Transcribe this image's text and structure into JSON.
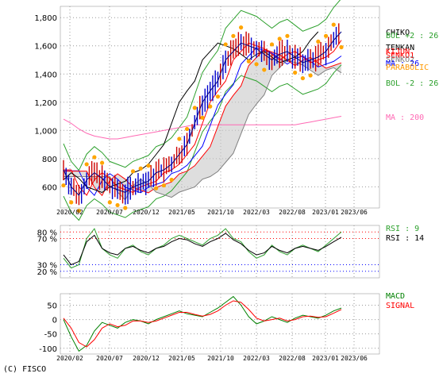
{
  "chart_data": [
    {
      "type": "line",
      "panel": "price",
      "y_ticks": [
        "1,800",
        "1,600",
        "1,400",
        "1,200",
        "1,000",
        "800",
        "600"
      ],
      "ylim": [
        450,
        1880
      ],
      "x_tick_labels": [
        "2020/02",
        "2020/07",
        "2020/12",
        "2021/05",
        "2021/10",
        "2022/03",
        "2022/08",
        "2023/01",
        "2023/06"
      ],
      "legend": [
        {
          "text": "CHIKO",
          "color": "#000000"
        },
        {
          "text": "BOL +2 : 26",
          "color": "#2ca02c"
        },
        {
          "text": "TENKAN",
          "color": "#000000"
        },
        {
          "text": "KIJUN",
          "color": "#ff0000"
        },
        {
          "text": "SENKO1",
          "color": "#ff0000"
        },
        {
          "text": "SENKO2",
          "color": "#808080"
        },
        {
          "text": "MA : 26",
          "color": "#0000ff"
        },
        {
          "text": "PARABOLIC",
          "color": "#ff9900"
        },
        {
          "text": "BOL -2 : 26",
          "color": "#2ca02c"
        },
        {
          "text": "MA : 200",
          "color": "#ff69b4"
        }
      ],
      "series": [
        {
          "name": "Close",
          "values": [
            720,
            600,
            540,
            650,
            700,
            660,
            600,
            580,
            560,
            600,
            620,
            640,
            700,
            720,
            760,
            830,
            900,
            1050,
            1200,
            1280,
            1350,
            1500,
            1560,
            1620,
            1600,
            1580,
            1540,
            1500,
            1540,
            1560,
            1520,
            1480,
            1500,
            1520,
            1560,
            1640,
            1700
          ]
        },
        {
          "name": "MA : 200",
          "values": [
            1080,
            1050,
            1010,
            980,
            960,
            950,
            940,
            940,
            950,
            960,
            970,
            980,
            990,
            1000,
            1010,
            1020,
            1030,
            1040,
            1040,
            1040,
            1040,
            1040,
            1040,
            1040,
            1040,
            1040,
            1040,
            1040,
            1040,
            1040,
            1040,
            1050,
            1060,
            1070,
            1080,
            1090,
            1100
          ]
        }
      ]
    },
    {
      "type": "line",
      "panel": "rsi",
      "y_ticks": [
        "80 %",
        "70 %",
        "30 %",
        "20 %"
      ],
      "legend": [
        {
          "text": "RSI : 9",
          "color": "#2ca02c"
        },
        {
          "text": "RSI : 14",
          "color": "#000000"
        }
      ],
      "series": [
        {
          "name": "RSI : 9",
          "values": [
            40,
            25,
            30,
            70,
            85,
            55,
            45,
            40,
            55,
            60,
            50,
            45,
            55,
            60,
            70,
            75,
            70,
            65,
            60,
            70,
            75,
            85,
            70,
            65,
            50,
            40,
            45,
            60,
            50,
            45,
            55,
            60,
            55,
            50,
            60,
            70,
            80
          ]
        },
        {
          "name": "RSI : 14",
          "values": [
            45,
            30,
            35,
            65,
            75,
            55,
            48,
            45,
            55,
            58,
            52,
            48,
            55,
            58,
            65,
            70,
            68,
            62,
            58,
            65,
            70,
            78,
            68,
            62,
            52,
            45,
            48,
            58,
            52,
            48,
            55,
            58,
            55,
            52,
            58,
            65,
            72
          ]
        }
      ]
    },
    {
      "type": "line",
      "panel": "macd",
      "y_ticks": [
        "50",
        "0",
        "-50",
        "-100"
      ],
      "ylim": [
        -120,
        90
      ],
      "legend": [
        {
          "text": "MACD",
          "color": "#008000"
        },
        {
          "text": "SIGNAL",
          "color": "#ff0000"
        }
      ],
      "series": [
        {
          "name": "MACD",
          "values": [
            0,
            -60,
            -110,
            -90,
            -40,
            -10,
            -20,
            -30,
            -10,
            0,
            -5,
            -15,
            0,
            10,
            20,
            30,
            20,
            15,
            10,
            25,
            40,
            60,
            80,
            50,
            10,
            -15,
            -5,
            10,
            0,
            -10,
            5,
            15,
            10,
            5,
            15,
            30,
            40
          ]
        },
        {
          "name": "SIGNAL",
          "values": [
            5,
            -30,
            -80,
            -95,
            -70,
            -30,
            -15,
            -25,
            -20,
            -5,
            -5,
            -10,
            -5,
            5,
            15,
            25,
            25,
            18,
            12,
            18,
            30,
            50,
            65,
            60,
            35,
            5,
            -5,
            0,
            5,
            -5,
            0,
            10,
            12,
            8,
            10,
            22,
            35
          ]
        }
      ]
    }
  ],
  "footer": "(C) FISCO"
}
